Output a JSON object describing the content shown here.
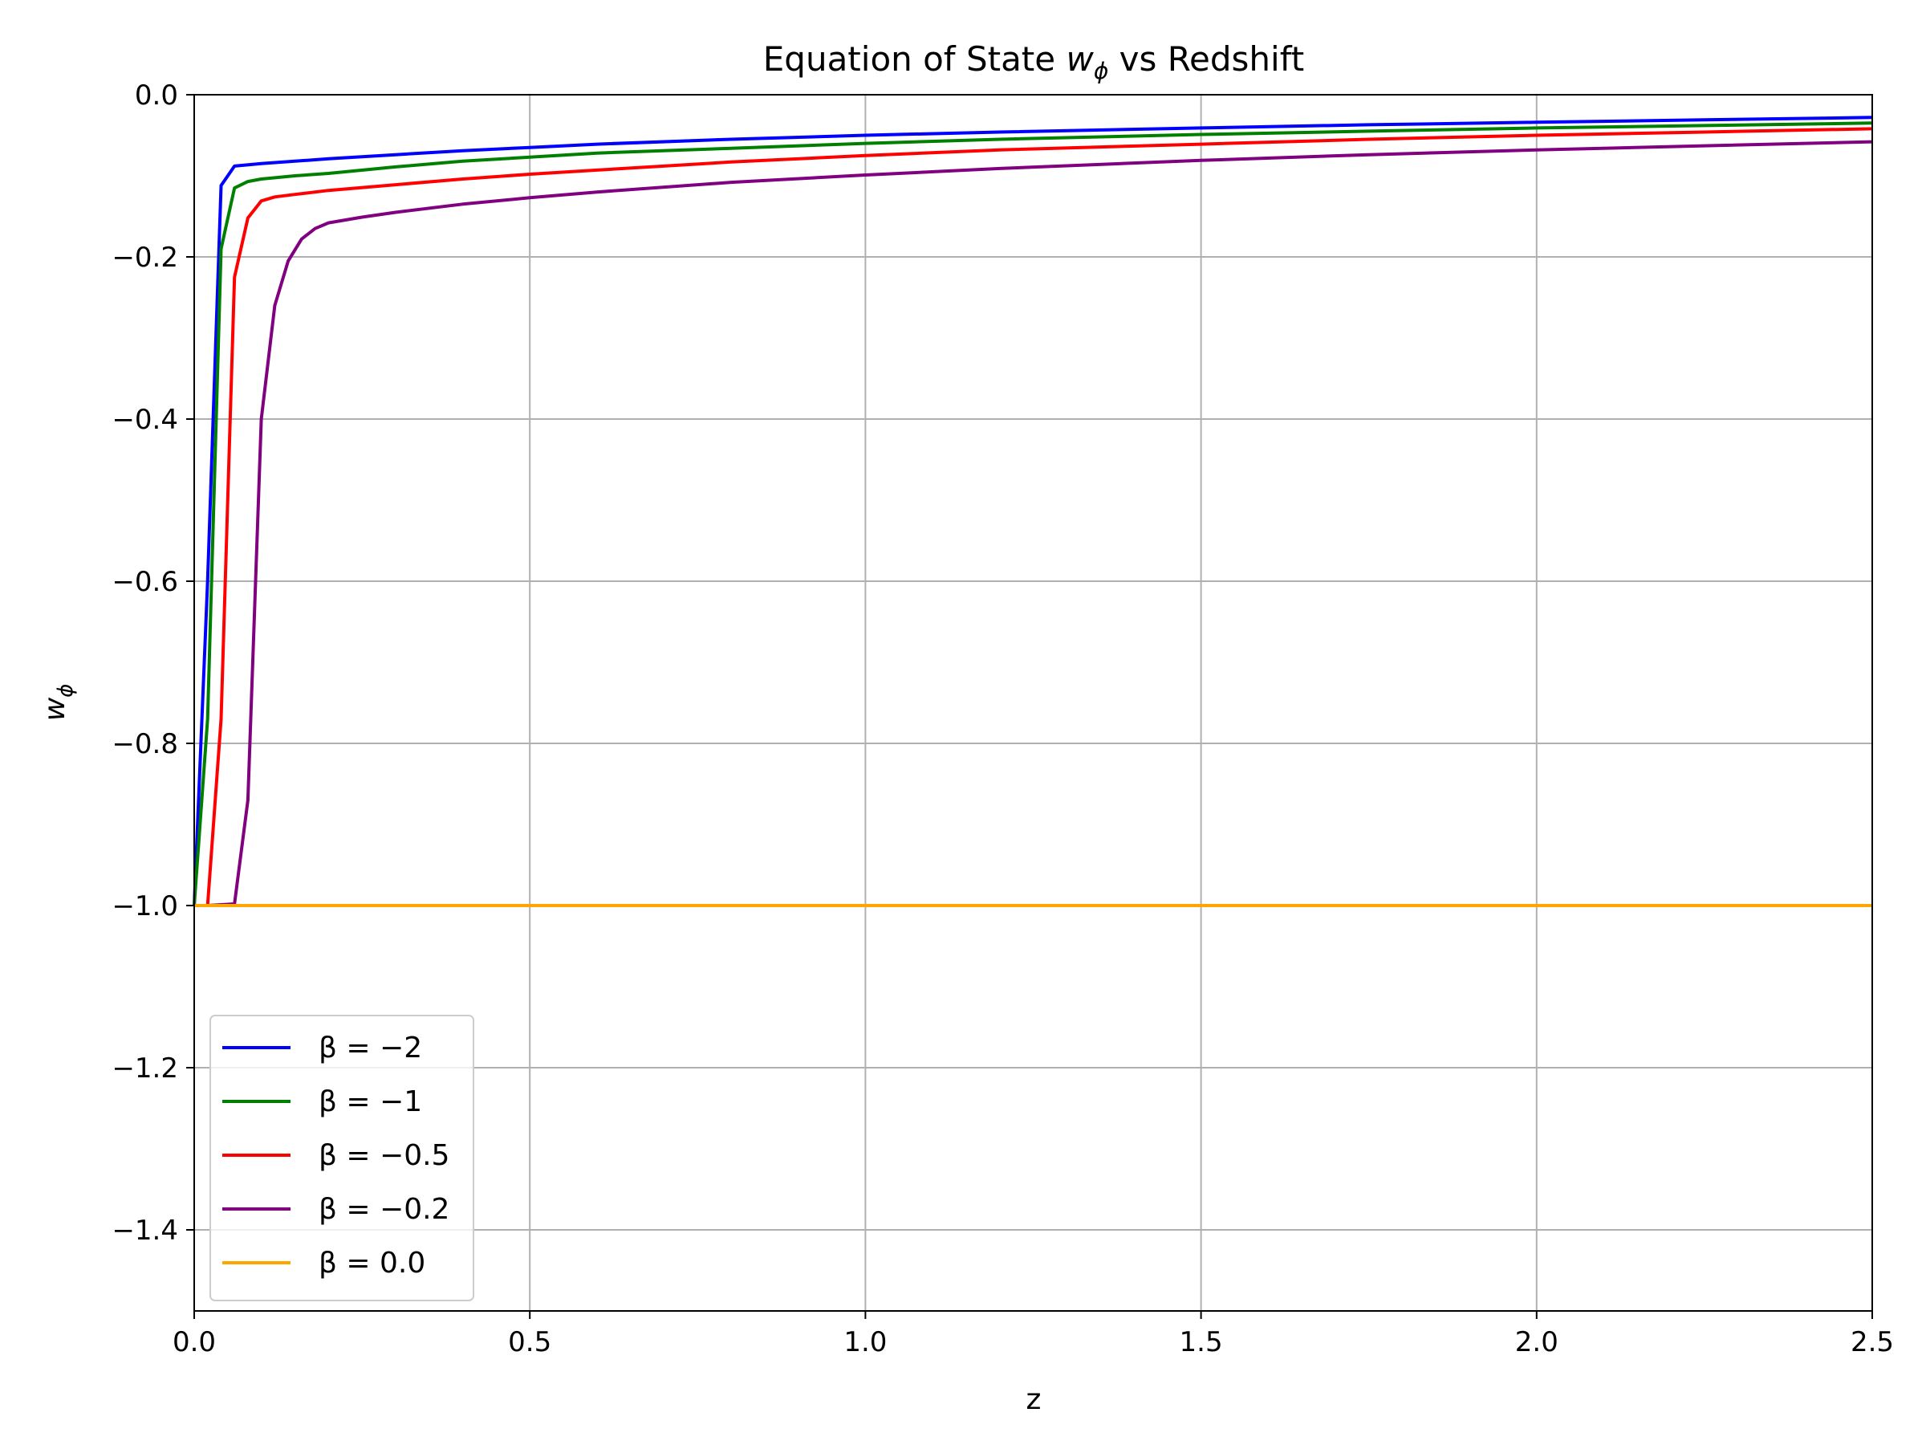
{
  "chart_data": {
    "type": "line",
    "title": {
      "prefix": "Equation of State ",
      "math": "w",
      "math_sub": "ϕ",
      "suffix": " vs Redshift"
    },
    "xlabel": "z",
    "ylabel": {
      "math": "w",
      "math_sub": "ϕ"
    },
    "xlim": [
      0.0,
      2.5
    ],
    "ylim": [
      -1.5,
      0.0
    ],
    "xticks": [
      {
        "value": 0.0,
        "label": "0.0"
      },
      {
        "value": 0.5,
        "label": "0.5"
      },
      {
        "value": 1.0,
        "label": "1.0"
      },
      {
        "value": 1.5,
        "label": "1.5"
      },
      {
        "value": 2.0,
        "label": "2.0"
      },
      {
        "value": 2.5,
        "label": "2.5"
      }
    ],
    "yticks": [
      {
        "value": 0.0,
        "label": "0.0"
      },
      {
        "value": -0.2,
        "label": "−0.2"
      },
      {
        "value": -0.4,
        "label": "−0.4"
      },
      {
        "value": -0.6,
        "label": "−0.6"
      },
      {
        "value": -0.8,
        "label": "−0.8"
      },
      {
        "value": -1.0,
        "label": "−1.0"
      },
      {
        "value": -1.2,
        "label": "−1.2"
      },
      {
        "value": -1.4,
        "label": "−1.4"
      }
    ],
    "grid": true,
    "legend_position": "lower-left",
    "series": [
      {
        "name": "β = −2",
        "color": "#0000ff",
        "x": [
          0.0,
          0.02,
          0.04,
          0.06,
          0.1,
          0.15,
          0.2,
          0.3,
          0.4,
          0.5,
          0.6,
          0.8,
          1.0,
          1.2,
          1.5,
          1.75,
          2.0,
          2.25,
          2.5
        ],
        "y": [
          -1.0,
          -0.6,
          -0.112,
          -0.088,
          -0.085,
          -0.082,
          -0.079,
          -0.074,
          -0.069,
          -0.065,
          -0.061,
          -0.055,
          -0.05,
          -0.046,
          -0.041,
          -0.037,
          -0.034,
          -0.031,
          -0.028
        ]
      },
      {
        "name": "β = −1",
        "color": "#008000",
        "x": [
          0.0,
          0.02,
          0.04,
          0.06,
          0.08,
          0.1,
          0.15,
          0.2,
          0.3,
          0.4,
          0.5,
          0.6,
          0.8,
          1.0,
          1.2,
          1.5,
          1.75,
          2.0,
          2.25,
          2.5
        ],
        "y": [
          -1.0,
          -0.77,
          -0.19,
          -0.115,
          -0.107,
          -0.104,
          -0.1,
          -0.097,
          -0.089,
          -0.082,
          -0.077,
          -0.072,
          -0.066,
          -0.06,
          -0.055,
          -0.049,
          -0.045,
          -0.041,
          -0.038,
          -0.035
        ]
      },
      {
        "name": "β = −0.5",
        "color": "#ff0000",
        "x": [
          0.0,
          0.02,
          0.04,
          0.06,
          0.08,
          0.1,
          0.12,
          0.15,
          0.2,
          0.3,
          0.4,
          0.5,
          0.6,
          0.8,
          1.0,
          1.2,
          1.5,
          1.75,
          2.0,
          2.25,
          2.5
        ],
        "y": [
          -1.0,
          -1.0,
          -0.77,
          -0.225,
          -0.152,
          -0.131,
          -0.126,
          -0.123,
          -0.118,
          -0.111,
          -0.104,
          -0.098,
          -0.093,
          -0.083,
          -0.075,
          -0.068,
          -0.061,
          -0.055,
          -0.05,
          -0.046,
          -0.042
        ]
      },
      {
        "name": "β = −0.2",
        "color": "#800080",
        "x": [
          0.0,
          0.02,
          0.06,
          0.08,
          0.1,
          0.12,
          0.14,
          0.16,
          0.18,
          0.2,
          0.25,
          0.3,
          0.4,
          0.5,
          0.6,
          0.8,
          1.0,
          1.2,
          1.5,
          1.75,
          2.0,
          2.25,
          2.5
        ],
        "y": [
          -1.0,
          -1.0,
          -0.998,
          -0.87,
          -0.4,
          -0.26,
          -0.205,
          -0.178,
          -0.165,
          -0.158,
          -0.151,
          -0.145,
          -0.135,
          -0.127,
          -0.12,
          -0.108,
          -0.099,
          -0.091,
          -0.081,
          -0.074,
          -0.068,
          -0.063,
          -0.058
        ]
      },
      {
        "name": "β = 0.0",
        "color": "#ffa500",
        "x": [
          0.0,
          2.5
        ],
        "y": [
          -1.0,
          -1.0
        ]
      }
    ]
  }
}
